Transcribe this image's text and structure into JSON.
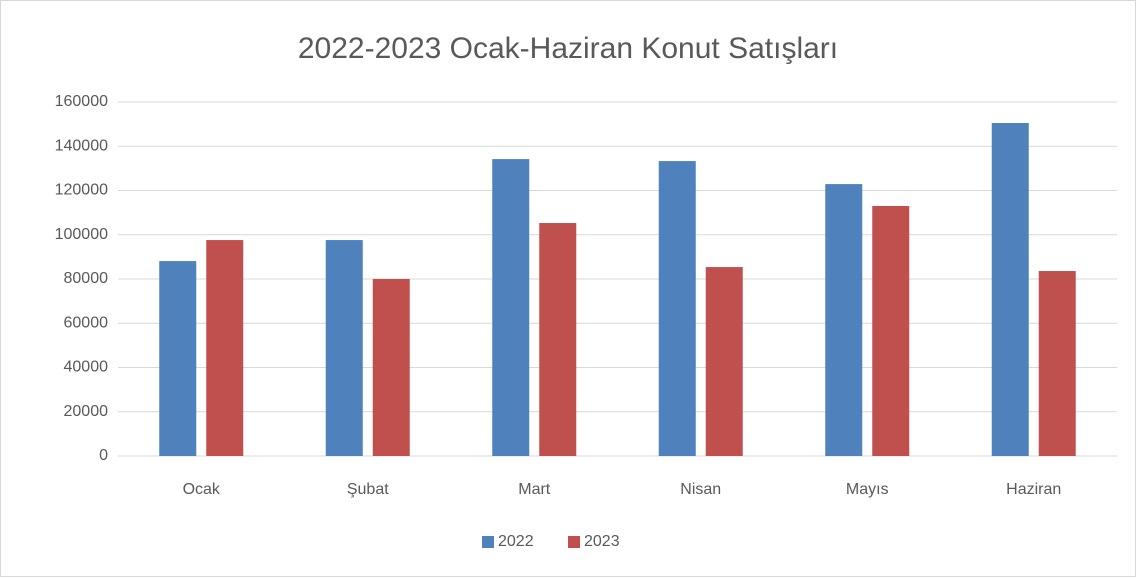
{
  "chart_data": {
    "type": "bar",
    "title": "2022-2023 Ocak-Haziran Konut Satışları",
    "categories": [
      "Ocak",
      "Şubat",
      "Mart",
      "Nisan",
      "Mayıs",
      "Haziran"
    ],
    "series": [
      {
        "name": "2022",
        "color": "#4f81bd",
        "values": [
          88100,
          97600,
          134200,
          133300,
          122900,
          150500
        ]
      },
      {
        "name": "2023",
        "color": "#c0504d",
        "values": [
          97600,
          80000,
          105300,
          85400,
          113000,
          83600
        ]
      }
    ],
    "ylim": [
      0,
      160000
    ],
    "yticks": [
      0,
      20000,
      40000,
      60000,
      80000,
      100000,
      120000,
      140000,
      160000
    ],
    "grid": true,
    "legend": "bottom"
  }
}
